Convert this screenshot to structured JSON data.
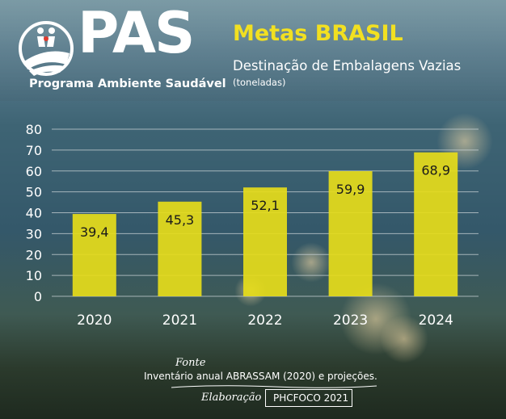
{
  "brand": {
    "name": "PAS",
    "subtitle": "Programa Ambiente Saudável"
  },
  "header": {
    "title": "Metas BRASIL",
    "subtitle": "Destinação de Embalagens Vazias",
    "unit_note": "(toneladas)"
  },
  "chart_data": {
    "type": "bar",
    "categories": [
      "2020",
      "2021",
      "2022",
      "2023",
      "2024"
    ],
    "values": [
      39.4,
      45.3,
      52.1,
      59.9,
      68.9
    ],
    "value_labels": [
      "39,4",
      "45,3",
      "52,1",
      "59,9",
      "68,9"
    ],
    "yticks": [
      "0",
      "10",
      "20",
      "30",
      "40",
      "50",
      "60",
      "70",
      "80"
    ],
    "ylim": [
      0,
      80
    ],
    "grid": true,
    "bar_color": "#e6dc1a"
  },
  "footer": {
    "source_label": "Fonte",
    "source_text": "Inventário anual ABRASSAM (2020) e projeções.",
    "credit_label": "Elaboração",
    "credit_text": "PHCFOCO 2021"
  },
  "colors": {
    "title": "#f2e021",
    "bar": "#e6dc1a",
    "grid": "#c9d3d6"
  }
}
